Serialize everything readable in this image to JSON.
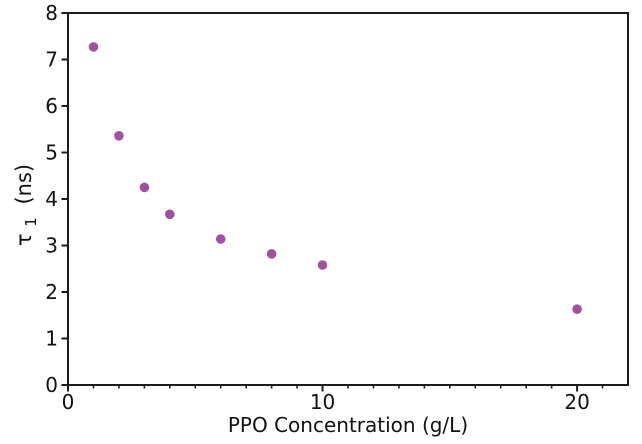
{
  "figure": {
    "background": "#ffffff"
  },
  "chart_data": {
    "type": "scatter",
    "title": "",
    "xlabel": "PPO Concentration (g/L)",
    "ylabel": {
      "symbol": "τ",
      "subscript": "1",
      "unit": "(ns)",
      "display": "τ1 (ns)"
    },
    "x": [
      1,
      2,
      3,
      4,
      6,
      8,
      10,
      20
    ],
    "y": [
      7.27,
      5.36,
      4.25,
      3.67,
      3.14,
      2.82,
      2.58,
      1.63
    ],
    "xlim": [
      0,
      22
    ],
    "ylim": [
      0,
      8
    ],
    "x_major_ticks": [
      0,
      10,
      20
    ],
    "x_minor_ticks": [
      1,
      2,
      3,
      4,
      5,
      6,
      7,
      8,
      9,
      11,
      12,
      13,
      14,
      15,
      16,
      17,
      18,
      19,
      21
    ],
    "y_major_ticks": [
      0,
      1,
      2,
      3,
      4,
      5,
      6,
      7,
      8
    ],
    "marker_color": "#A0529E",
    "axis_color": "#1c1c1c",
    "grid": false,
    "legend": "none"
  }
}
